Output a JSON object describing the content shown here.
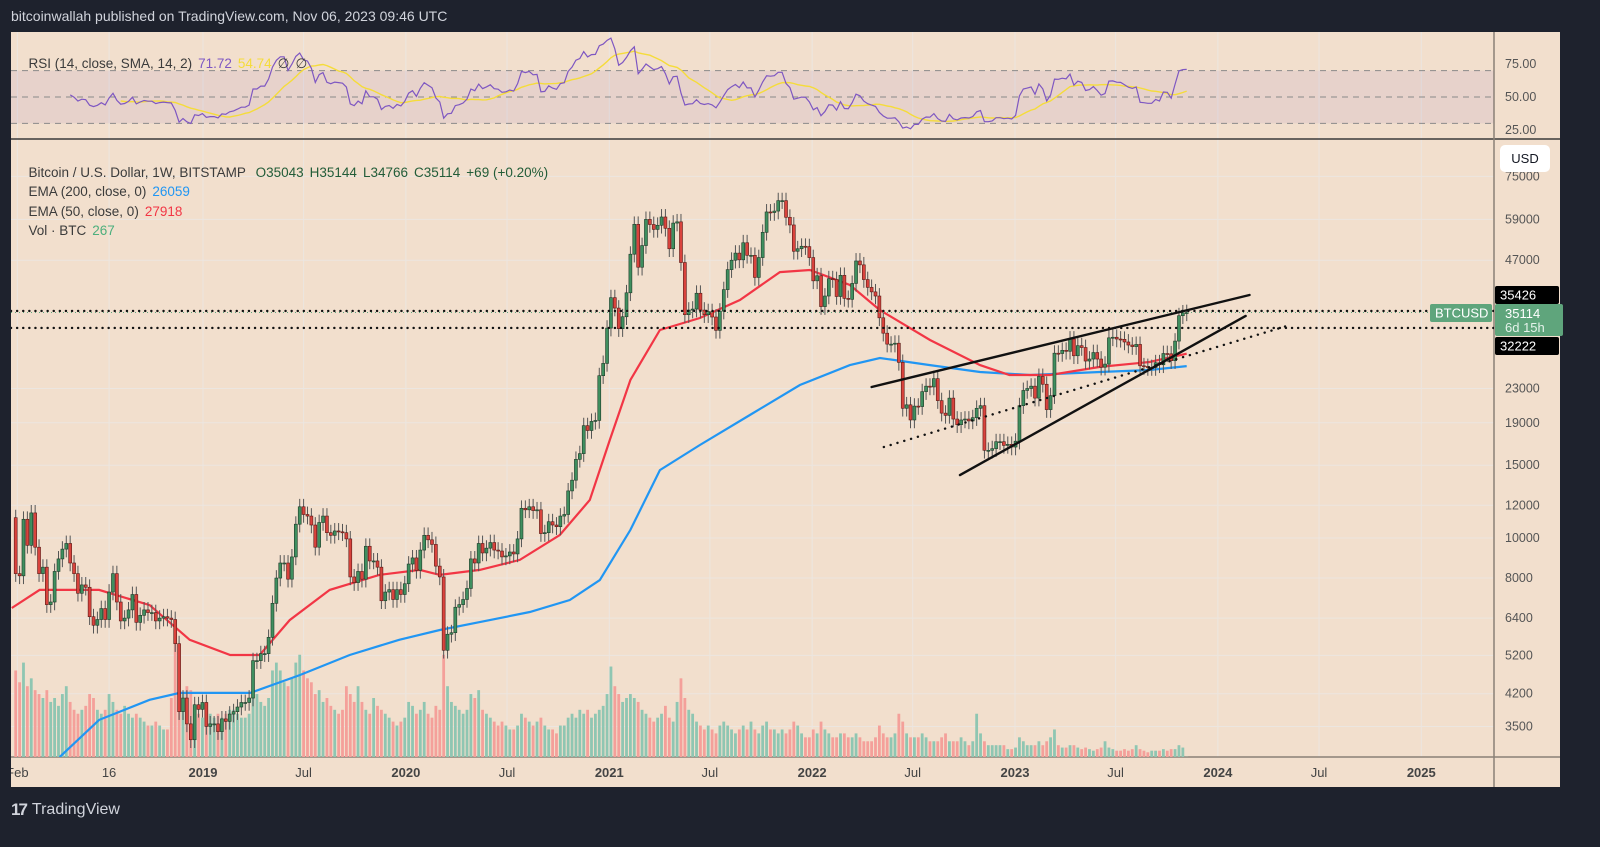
{
  "header": {
    "published": "bitcoinwallah published on TradingView.com, Nov 06, 2023 09:46 UTC"
  },
  "footer": {
    "brand": "TradingView",
    "logo_icon": "tradingview-logo-icon"
  },
  "rsi_legend": {
    "title": "RSI (14, close, SMA, 14, 2)",
    "rsi_value": "71.72",
    "sma_value": "54.74",
    "na1": "∅",
    "na2": "∅"
  },
  "main_legend": {
    "symbol": "Bitcoin / U.S. Dollar, 1W, BITSTAMP",
    "open": "O35043",
    "high": "H35144",
    "low": "L34766",
    "close": "C35114",
    "change": "+69 (+0.20%)",
    "ema200_label": "EMA (200, close, 0)",
    "ema200_value": "26059",
    "ema50_label": "EMA (50, close, 0)",
    "ema50_value": "27918",
    "vol_label": "Vol · BTC",
    "vol_value": "267"
  },
  "currency_button": "USD",
  "price_markers": {
    "line_upper": "35426",
    "line_lower": "32222",
    "symbol_tag": "BTCUSD",
    "last_price": "35114",
    "countdown": "6d 15h"
  },
  "colors": {
    "background": "#f2dfcd",
    "up": "#3f8f5f",
    "down": "#d9433d",
    "vol_up": "#8fc6b2",
    "vol_down": "#f4a09a",
    "ema200": "#2196f3",
    "ema50": "#f23645",
    "rsi": "#7e57c2",
    "rsi_sma": "#f5dc3a",
    "last_price": "#5fa57c"
  },
  "chart_data": [
    {
      "type": "line",
      "pane": "RSI",
      "title": "RSI (14, close, SMA, 14, 2)",
      "ylim": [
        20,
        100
      ],
      "y_ticks": [
        "75.00",
        "50.00",
        "25.00"
      ],
      "bands": [
        70,
        50,
        30
      ],
      "last_values": {
        "rsi": 71.72,
        "sma": 54.74
      }
    },
    {
      "type": "candlestick",
      "title": "Bitcoin / U.S. Dollar, 1W, BITSTAMP",
      "y_scale": "log",
      "grid": true,
      "y_ticks": [
        75000,
        59000,
        47000,
        23000,
        19000,
        15000,
        12000,
        10000,
        8000,
        6400,
        5200,
        4200,
        3500
      ],
      "x_ticks": [
        {
          "label": "Feb",
          "date": "2018-02-01",
          "bold": false
        },
        {
          "label": "16",
          "date": "2018-07-16",
          "bold": false
        },
        {
          "label": "2019",
          "date": "2019-01-01",
          "bold": true
        },
        {
          "label": "Jul",
          "date": "2019-07-01",
          "bold": false
        },
        {
          "label": "2020",
          "date": "2020-01-01",
          "bold": true
        },
        {
          "label": "Jul",
          "date": "2020-07-01",
          "bold": false
        },
        {
          "label": "2021",
          "date": "2021-01-01",
          "bold": true
        },
        {
          "label": "Jul",
          "date": "2021-07-01",
          "bold": false
        },
        {
          "label": "2022",
          "date": "2022-01-01",
          "bold": true
        },
        {
          "label": "Jul",
          "date": "2022-07-01",
          "bold": false
        },
        {
          "label": "2023",
          "date": "2023-01-01",
          "bold": true
        },
        {
          "label": "Jul",
          "date": "2023-07-01",
          "bold": false
        },
        {
          "label": "2024",
          "date": "2024-01-01",
          "bold": true
        },
        {
          "label": "Jul",
          "date": "2024-07-01",
          "bold": false
        },
        {
          "label": "2025",
          "date": "2025-01-01",
          "bold": true
        }
      ],
      "first_week": "2018-01-29",
      "first_open": 11200,
      "close": [
        8200,
        8100,
        11100,
        9600,
        11500,
        9500,
        8200,
        8500,
        6900,
        7000,
        8300,
        8900,
        9400,
        9700,
        8700,
        8200,
        7350,
        7700,
        7600,
        6450,
        6150,
        6350,
        6750,
        6350,
        7400,
        8200,
        7000,
        6300,
        6400,
        6700,
        7300,
        6250,
        6500,
        6700,
        6600,
        6600,
        6300,
        6400,
        6450,
        6400,
        6350,
        5550,
        3800,
        4100,
        3550,
        3250,
        3950,
        3850,
        4000,
        3500,
        3550,
        3550,
        3400,
        3650,
        3600,
        3750,
        3800,
        3900,
        4000,
        4000,
        4100,
        5050,
        5050,
        5250,
        5250,
        5750,
        6950,
        8000,
        8700,
        8700,
        7950,
        9000,
        10800,
        11900,
        11400,
        11300,
        10750,
        9500,
        10900,
        11300,
        10300,
        10150,
        10400,
        10350,
        10300,
        9950,
        8050,
        7800,
        8300,
        7950,
        9550,
        8800,
        8800,
        8500,
        7050,
        7400,
        7500,
        7100,
        7500,
        7300,
        7750,
        8650,
        8950,
        8350,
        9350,
        10150,
        9900,
        9650,
        8550,
        8050,
        5350,
        5850,
        5900,
        6800,
        6900,
        7100,
        7550,
        8900,
        8700,
        9700,
        9200,
        9450,
        9750,
        9350,
        9300,
        9000,
        9050,
        9250,
        9150,
        9950,
        11800,
        11700,
        11900,
        11650,
        11700,
        10250,
        10300,
        10950,
        10750,
        10650,
        11300,
        11400,
        13000,
        13800,
        15500,
        16000,
        18700,
        18200,
        19150,
        19250,
        24700,
        26450,
        32200,
        38150,
        36000,
        32100,
        34300,
        39200,
        48600,
        57400,
        45200,
        51000,
        59000,
        57350,
        55800,
        57100,
        59800,
        56150,
        50100,
        57800,
        58200,
        46400,
        34700,
        35600,
        35800,
        39100,
        35600,
        34700,
        35300,
        34250,
        31800,
        35400,
        39900,
        44600,
        47000,
        48900,
        47100,
        51800,
        48300,
        48300,
        42700,
        47700,
        54900,
        61500,
        61300,
        61800,
        65500,
        65500,
        59700,
        57200,
        49400,
        50100,
        50800,
        50700,
        47700,
        41900,
        43100,
        36300,
        38500,
        42400,
        42200,
        38400,
        43200,
        38000,
        37800,
        41300,
        46800,
        45800,
        42200,
        40400,
        39400,
        38500,
        34100,
        31300,
        29450,
        29450,
        29600,
        26600,
        20600,
        21000,
        19300,
        20850,
        20800,
        22600,
        23300,
        23200,
        24300,
        21500,
        20050,
        19800,
        21800,
        19400,
        18800,
        19300,
        19400,
        19200,
        19550,
        20600,
        20900,
        16300,
        16300,
        16450,
        17100,
        17100,
        16750,
        16850,
        16600,
        17150,
        20900,
        22750,
        23000,
        23300,
        21800,
        24600,
        23550,
        20450,
        22100,
        28000,
        27950,
        28450,
        28300,
        30300,
        27600,
        29200,
        28900,
        26800,
        27100,
        28100,
        27100,
        25900,
        26350,
        30500,
        30600,
        30300,
        30250,
        29800,
        29300,
        29050,
        29400,
        26100,
        26000,
        25850,
        25850,
        26550,
        26250,
        27950,
        27900,
        26850,
        29950,
        34500,
        35050,
        35114
      ],
      "volume_thousand_btc": [
        110,
        95,
        120,
        90,
        100,
        85,
        80,
        75,
        85,
        70,
        75,
        65,
        80,
        90,
        70,
        60,
        55,
        60,
        65,
        80,
        75,
        60,
        55,
        60,
        80,
        70,
        60,
        55,
        65,
        55,
        50,
        55,
        50,
        45,
        40,
        40,
        45,
        40,
        35,
        35,
        75,
        150,
        100,
        80,
        90,
        85,
        60,
        55,
        50,
        60,
        55,
        50,
        55,
        50,
        55,
        60,
        60,
        55,
        50,
        50,
        55,
        110,
        80,
        70,
        65,
        75,
        110,
        120,
        110,
        95,
        90,
        100,
        120,
        130,
        110,
        100,
        95,
        80,
        85,
        70,
        75,
        65,
        60,
        55,
        60,
        90,
        80,
        70,
        90,
        70,
        60,
        55,
        75,
        65,
        60,
        55,
        50,
        45,
        40,
        45,
        50,
        70,
        65,
        55,
        60,
        70,
        55,
        50,
        65,
        60,
        130,
        90,
        70,
        65,
        60,
        55,
        60,
        80,
        75,
        85,
        60,
        55,
        50,
        45,
        40,
        45,
        40,
        35,
        35,
        40,
        55,
        50,
        45,
        40,
        45,
        50,
        40,
        35,
        35,
        30,
        40,
        40,
        50,
        55,
        50,
        60,
        55,
        60,
        50,
        55,
        60,
        65,
        80,
        115,
        90,
        80,
        70,
        75,
        80,
        75,
        70,
        60,
        55,
        50,
        45,
        50,
        55,
        65,
        50,
        45,
        70,
        100,
        75,
        60,
        55,
        45,
        40,
        35,
        40,
        35,
        30,
        40,
        45,
        40,
        35,
        30,
        35,
        40,
        35,
        45,
        35,
        30,
        40,
        45,
        35,
        35,
        30,
        35,
        30,
        35,
        45,
        40,
        30,
        25,
        25,
        35,
        30,
        45,
        35,
        30,
        25,
        25,
        30,
        30,
        25,
        25,
        30,
        25,
        20,
        20,
        20,
        25,
        40,
        30,
        25,
        25,
        30,
        55,
        45,
        30,
        25,
        25,
        25,
        30,
        25,
        20,
        20,
        20,
        25,
        30,
        20,
        20,
        20,
        25,
        20,
        15,
        20,
        55,
        30,
        20,
        15,
        15,
        15,
        15,
        15,
        10,
        10,
        12,
        25,
        20,
        15,
        15,
        15,
        20,
        15,
        20,
        25,
        35,
        15,
        12,
        12,
        15,
        15,
        12,
        10,
        12,
        10,
        8,
        10,
        12,
        20,
        12,
        10,
        8,
        8,
        10,
        8,
        10,
        15,
        10,
        8,
        6,
        8,
        8,
        8,
        10,
        8,
        10,
        10,
        15,
        12,
        0.267
      ],
      "ema200": [
        [
          "2018-04-18",
          2950
        ],
        [
          "2018-06-28",
          3630
        ],
        [
          "2018-09-27",
          4060
        ],
        [
          "2018-11-20",
          4220
        ],
        [
          "2019-03-27",
          4220
        ],
        [
          "2019-06-24",
          4660
        ],
        [
          "2019-09-22",
          5210
        ],
        [
          "2019-12-20",
          5670
        ],
        [
          "2020-03-02",
          5990
        ],
        [
          "2020-05-13",
          6260
        ],
        [
          "2020-08-11",
          6620
        ],
        [
          "2020-10-22",
          7080
        ],
        [
          "2020-12-15",
          7910
        ],
        [
          "2021-02-08",
          10460
        ],
        [
          "2021-04-02",
          14600
        ],
        [
          "2021-06-13",
          16790
        ],
        [
          "2021-09-11",
          19840
        ],
        [
          "2021-12-10",
          23450
        ],
        [
          "2022-03-10",
          26200
        ],
        [
          "2022-05-03",
          27260
        ],
        [
          "2022-08-01",
          26200
        ],
        [
          "2022-10-30",
          25220
        ],
        [
          "2023-01-28",
          24800
        ],
        [
          "2023-06-03",
          25220
        ],
        [
          "2023-08-31",
          25500
        ],
        [
          "2023-11-06",
          26059
        ]
      ],
      "ema50": [
        [
          "2018-01-22",
          6770
        ],
        [
          "2018-03-13",
          7490
        ],
        [
          "2018-06-28",
          7490
        ],
        [
          "2018-09-27",
          6880
        ],
        [
          "2018-12-08",
          5670
        ],
        [
          "2019-02-19",
          5210
        ],
        [
          "2019-04-13",
          5210
        ],
        [
          "2019-06-06",
          6330
        ],
        [
          "2019-08-17",
          7490
        ],
        [
          "2019-11-14",
          8140
        ],
        [
          "2020-01-26",
          8370
        ],
        [
          "2020-03-02",
          8140
        ],
        [
          "2020-05-13",
          8370
        ],
        [
          "2020-07-24",
          8850
        ],
        [
          "2020-10-04",
          10170
        ],
        [
          "2020-11-27",
          12360
        ],
        [
          "2021-01-02",
          17260
        ],
        [
          "2021-02-08",
          24110
        ],
        [
          "2021-04-02",
          31860
        ],
        [
          "2021-06-13",
          34060
        ],
        [
          "2021-08-24",
          37660
        ],
        [
          "2021-11-04",
          44000
        ],
        [
          "2021-12-28",
          44500
        ],
        [
          "2022-03-10",
          40940
        ],
        [
          "2022-05-03",
          35600
        ],
        [
          "2022-08-01",
          30130
        ],
        [
          "2022-10-30",
          26200
        ],
        [
          "2022-12-22",
          24800
        ],
        [
          "2023-03-05",
          24800
        ],
        [
          "2023-06-03",
          25940
        ],
        [
          "2023-08-31",
          26660
        ],
        [
          "2023-11-06",
          27918
        ]
      ],
      "drawings": {
        "upper_wedge": [
          [
            "2022-04-18",
            23190
          ],
          [
            "2024-02-27",
            38720
          ]
        ],
        "lower_wedge": [
          [
            "2022-09-24",
            14200
          ],
          [
            "2024-02-20",
            34450
          ]
        ],
        "dotted_support": [
          [
            "2022-05-10",
            16600
          ],
          [
            "2024-05-10",
            32760
          ]
        ],
        "horizontal_levels": [
          35426,
          32222
        ],
        "last_price": 35114
      }
    }
  ]
}
